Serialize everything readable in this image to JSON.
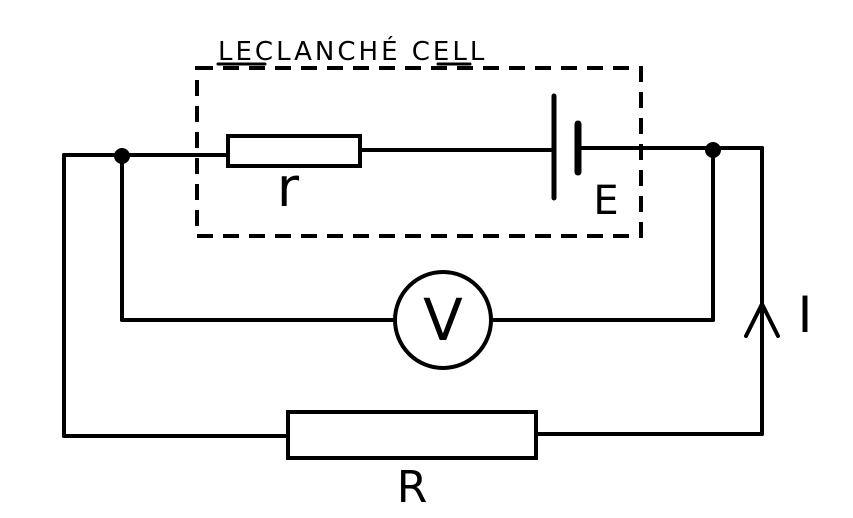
{
  "diagram": {
    "cell_label": "LECLANCHÉ CELL",
    "internal_resistance_label": "r",
    "emf_label": "E",
    "voltmeter_label": "V",
    "current_label": "I",
    "external_resistance_label": "R"
  },
  "colors": {
    "ink": "#000000",
    "background": "#ffffff"
  }
}
